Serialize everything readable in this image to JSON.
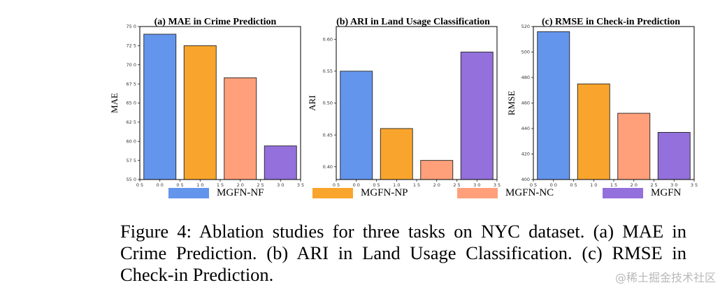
{
  "legend": [
    {
      "label": "MGFN-NF",
      "color": "#6495ED"
    },
    {
      "label": "MGFN-NP",
      "color": "#F9A52D"
    },
    {
      "label": "MGFN-NC",
      "color": "#FFA07A"
    },
    {
      "label": "MGFN",
      "color": "#9370DB"
    }
  ],
  "caption": "Figure 4: Ablation studies for three tasks on NYC dataset. (a) MAE in Crime Prediction. (b) ARI in Land Usage Classification. (c) RMSE in Check-in Prediction.",
  "watermark": "@稀土掘金技术社区",
  "chart_data": [
    {
      "type": "bar",
      "title": "(a) MAE in Crime Prediction",
      "ylabel": "MAE",
      "xlabel": "",
      "categories": [
        "MGFN-NF",
        "MGFN-NP",
        "MGFN-NC",
        "MGFN"
      ],
      "values": [
        74.0,
        72.5,
        68.3,
        59.4
      ],
      "colors": [
        "#6495ED",
        "#F9A52D",
        "#FFA07A",
        "#9370DB"
      ],
      "ylim": [
        55.0,
        75.0
      ],
      "yticks": [
        55.0,
        57.5,
        60.0,
        62.5,
        65.0,
        67.5,
        70.0,
        72.5,
        75.0
      ],
      "ytick_labels": [
        "55 0",
        "57 5",
        "60 0",
        "62 5",
        "65 0",
        "67 5",
        "70 0",
        "72 5",
        "75 0"
      ],
      "xlim": [
        -0.5,
        3.5
      ],
      "xticks": [
        -0.5,
        0.0,
        0.5,
        1.0,
        1.5,
        2.0,
        2.5,
        3.0,
        3.5
      ],
      "xtick_labels": [
        "0 5",
        "0 0",
        "0 5",
        "1 0",
        "1 5",
        "2 0",
        "2 5",
        "3 0",
        "3 5"
      ],
      "grid": false
    },
    {
      "type": "bar",
      "title": "(b) ARI in Land Usage Classification",
      "ylabel": "ARI",
      "xlabel": "",
      "categories": [
        "MGFN-NF",
        "MGFN-NP",
        "MGFN-NC",
        "MGFN"
      ],
      "values": [
        0.55,
        0.46,
        0.41,
        0.58
      ],
      "colors": [
        "#6495ED",
        "#F9A52D",
        "#FFA07A",
        "#9370DB"
      ],
      "ylim": [
        0.38,
        0.62
      ],
      "yticks": [
        0.4,
        0.45,
        0.5,
        0.55,
        0.6
      ],
      "ytick_labels": [
        "0.40",
        "0.45",
        "0.50",
        "0.55",
        "0.60"
      ],
      "xlim": [
        -0.5,
        3.5
      ],
      "xticks": [
        -0.5,
        0.0,
        0.5,
        1.0,
        1.5,
        2.0,
        2.5,
        3.0,
        3.5
      ],
      "xtick_labels": [
        "0 5",
        "0 0",
        "0 5",
        "1 0",
        "1 5",
        "2 0",
        "2 5",
        "3 0",
        "3 5"
      ],
      "grid": false
    },
    {
      "type": "bar",
      "title": "(c) RMSE in Check-in Prediction",
      "ylabel": "RMSE",
      "xlabel": "",
      "categories": [
        "MGFN-NF",
        "MGFN-NP",
        "MGFN-NC",
        "MGFN"
      ],
      "values": [
        516,
        475,
        452,
        437
      ],
      "colors": [
        "#6495ED",
        "#F9A52D",
        "#FFA07A",
        "#9370DB"
      ],
      "ylim": [
        400,
        520
      ],
      "yticks": [
        400,
        420,
        440,
        460,
        480,
        500,
        520
      ],
      "ytick_labels": [
        "400",
        "420",
        "440",
        "460",
        "480",
        "500",
        "520"
      ],
      "xlim": [
        -0.5,
        3.5
      ],
      "xticks": [
        -0.5,
        0.0,
        0.5,
        1.0,
        1.5,
        2.0,
        2.5,
        3.0,
        3.5
      ],
      "xtick_labels": [
        "0 5",
        "0 0",
        "0 5",
        "1 0",
        "1 5",
        "2 0",
        "2 5",
        "3 0",
        "3 5"
      ],
      "grid": false
    }
  ]
}
